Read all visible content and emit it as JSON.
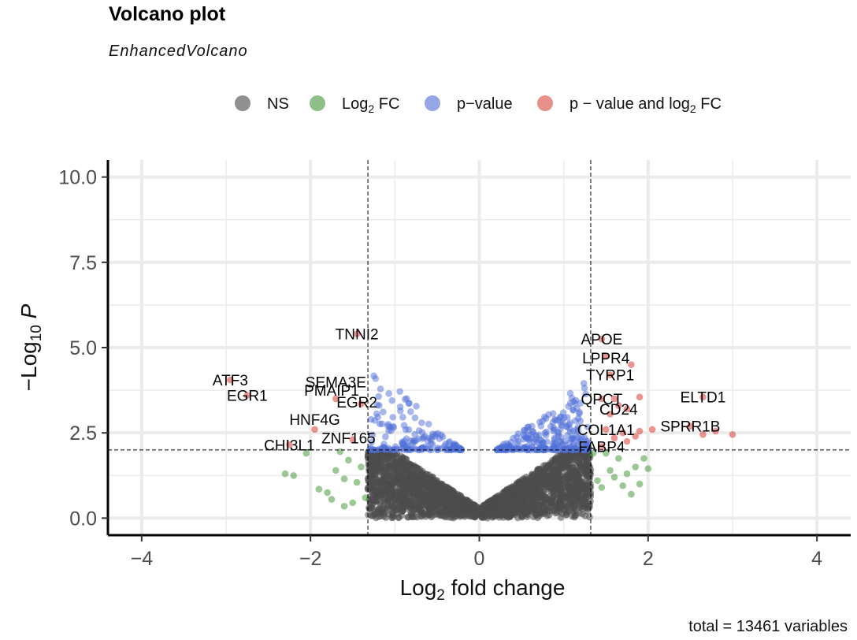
{
  "header": {
    "title": "Volcano plot",
    "subtitle": "EnhancedVolcano",
    "caption": "total = 13461 variables"
  },
  "legend": [
    {
      "label": "NS",
      "sub": "",
      "tail": "",
      "color": "#909090"
    },
    {
      "label": "Log",
      "sub": "2",
      "tail": " FC",
      "color": "#8fbf88"
    },
    {
      "label": "p−value",
      "sub": "",
      "tail": "",
      "color": "#96a5e6"
    },
    {
      "label": "p − value and log",
      "sub": "2",
      "tail": " FC",
      "color": "#e8908a"
    }
  ],
  "colors": {
    "ns": "#4d4d4d",
    "log2fc": "#4a9a3e",
    "pvalue": "#4f6fd8",
    "both": "#dc4f46",
    "grid": "#ebebeb"
  },
  "chart_data": {
    "type": "scatter",
    "xlabel": "Log2 fold change",
    "ylabel": "−Log10 P",
    "xlim": [
      -4.4,
      4.4
    ],
    "ylim": [
      -0.5,
      10.5
    ],
    "x_ticks": [
      "−4",
      "−2",
      "0",
      "2",
      "4"
    ],
    "x_tick_values": [
      -4,
      -2,
      0,
      2,
      4
    ],
    "y_ticks": [
      "0.0",
      "2.5",
      "5.0",
      "7.5",
      "10.0"
    ],
    "y_tick_values": [
      0,
      2.5,
      5,
      7.5,
      10
    ],
    "fc_cutoff": 1.32,
    "p_cutoff": 2.0,
    "total_variables": 13461,
    "labeled_points": [
      {
        "label": "TNNI2",
        "x": -1.45,
        "y": 5.4
      },
      {
        "label": "ATF3",
        "x": -2.95,
        "y": 4.05
      },
      {
        "label": "EGR1",
        "x": -2.75,
        "y": 3.6
      },
      {
        "label": "SEMA3E",
        "x": -1.7,
        "y": 4.0
      },
      {
        "label": "PMAIP1",
        "x": -1.75,
        "y": 3.75
      },
      {
        "label": "EGR2",
        "x": -1.45,
        "y": 3.4
      },
      {
        "label": "HNF4G",
        "x": -1.95,
        "y": 2.9
      },
      {
        "label": "CHI3L1",
        "x": -2.25,
        "y": 2.15
      },
      {
        "label": "ZNF165",
        "x": -1.55,
        "y": 2.35
      },
      {
        "label": "APOE",
        "x": 1.45,
        "y": 5.25
      },
      {
        "label": "LPPR4",
        "x": 1.5,
        "y": 4.7
      },
      {
        "label": "TYRP1",
        "x": 1.55,
        "y": 4.2
      },
      {
        "label": "QPCT",
        "x": 1.45,
        "y": 3.5
      },
      {
        "label": "CD24",
        "x": 1.65,
        "y": 3.2
      },
      {
        "label": "ELTD1",
        "x": 2.65,
        "y": 3.55
      },
      {
        "label": "COL1A1",
        "x": 1.5,
        "y": 2.6
      },
      {
        "label": "SPRR1B",
        "x": 2.5,
        "y": 2.7
      },
      {
        "label": "FABP4",
        "x": 1.45,
        "y": 2.1
      }
    ],
    "red_points": [
      [
        -2.95,
        4.05
      ],
      [
        -2.75,
        3.6
      ],
      [
        -1.45,
        5.4
      ],
      [
        -1.7,
        3.5
      ],
      [
        -1.4,
        3.35
      ],
      [
        -1.95,
        2.6
      ],
      [
        -2.25,
        2.15
      ],
      [
        -1.5,
        2.3
      ],
      [
        1.45,
        5.25
      ],
      [
        1.5,
        4.75
      ],
      [
        1.8,
        4.5
      ],
      [
        1.55,
        4.2
      ],
      [
        1.45,
        3.5
      ],
      [
        1.6,
        3.5
      ],
      [
        1.9,
        3.55
      ],
      [
        1.65,
        3.3
      ],
      [
        1.75,
        3.2
      ],
      [
        1.55,
        3.05
      ],
      [
        2.65,
        3.55
      ],
      [
        1.5,
        2.6
      ],
      [
        1.7,
        2.5
      ],
      [
        1.85,
        2.4
      ],
      [
        2.05,
        2.6
      ],
      [
        2.5,
        2.7
      ],
      [
        2.65,
        2.45
      ],
      [
        2.8,
        2.55
      ],
      [
        3.0,
        2.45
      ],
      [
        1.45,
        2.1
      ],
      [
        1.9,
        2.55
      ],
      [
        1.6,
        2.35
      ],
      [
        1.75,
        2.25
      ]
    ],
    "green_points": [
      [
        -2.3,
        1.3
      ],
      [
        -2.2,
        1.25
      ],
      [
        -2.05,
        1.9
      ],
      [
        -1.9,
        0.85
      ],
      [
        -1.8,
        0.75
      ],
      [
        -1.7,
        1.4
      ],
      [
        -1.6,
        1.15
      ],
      [
        -1.55,
        1.7
      ],
      [
        -1.5,
        0.45
      ],
      [
        -1.45,
        1.05
      ],
      [
        -1.4,
        1.5
      ],
      [
        -1.35,
        0.6
      ],
      [
        -1.65,
        1.95
      ],
      [
        -1.75,
        0.55
      ],
      [
        -1.6,
        0.35
      ],
      [
        1.35,
        1.9
      ],
      [
        1.4,
        1.1
      ],
      [
        1.45,
        0.9
      ],
      [
        1.55,
        1.4
      ],
      [
        1.6,
        1.2
      ],
      [
        1.65,
        1.75
      ],
      [
        1.7,
        0.95
      ],
      [
        1.8,
        0.7
      ],
      [
        1.85,
        1.5
      ],
      [
        1.95,
        1.75
      ],
      [
        2.0,
        1.45
      ],
      [
        1.5,
        1.9
      ],
      [
        1.75,
        1.3
      ],
      [
        1.9,
        1.0
      ]
    ]
  }
}
